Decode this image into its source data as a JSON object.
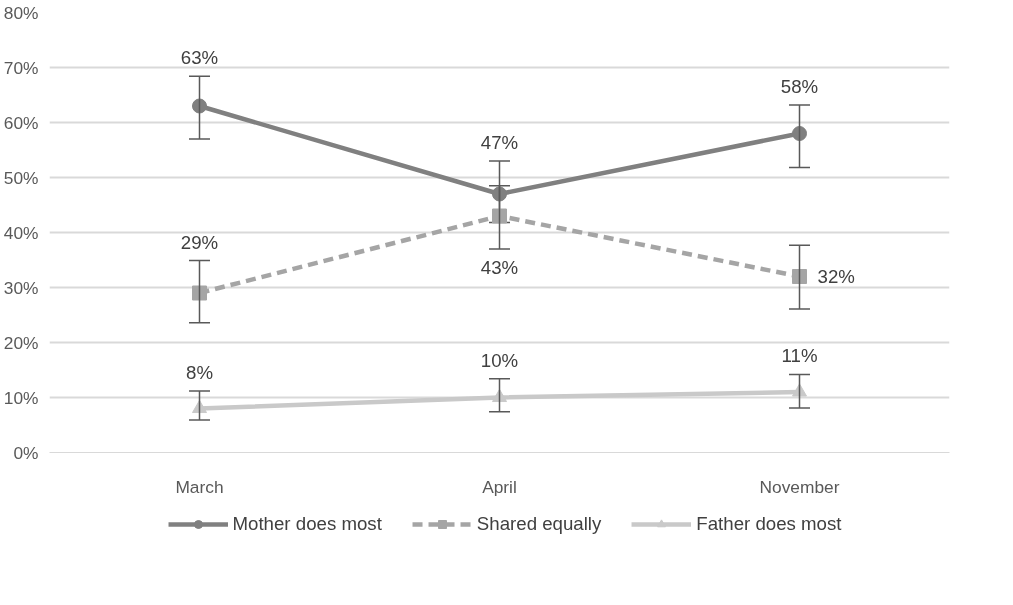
{
  "chart_data": {
    "type": "line",
    "categories": [
      "March",
      "April",
      "November"
    ],
    "series": [
      {
        "name": "Mother does most",
        "color": "#808080",
        "marker": "circle",
        "line_style": "solid",
        "values": [
          63,
          47,
          58
        ],
        "value_labels": [
          "63%",
          "47%",
          "58%"
        ],
        "errors": [
          [
            57.0,
            68.4
          ],
          [
            41.8,
            53.0
          ],
          [
            51.8,
            63.2
          ]
        ]
      },
      {
        "name": "Shared equally",
        "color": "#a5a5a5",
        "marker": "square",
        "line_style": "dashed",
        "values": [
          29,
          43,
          32
        ],
        "value_labels": [
          "29%",
          "43%",
          "32%"
        ],
        "errors": [
          [
            23.6,
            34.9
          ],
          [
            37.0,
            48.5
          ],
          [
            26.1,
            37.7
          ]
        ]
      },
      {
        "name": "Father does most",
        "color": "#c9c9c9",
        "marker": "triangle",
        "line_style": "solid",
        "values": [
          8,
          10,
          11
        ],
        "value_labels": [
          "8%",
          "10%",
          "11%"
        ],
        "errors": [
          [
            5.9,
            11.2
          ],
          [
            7.4,
            13.4
          ],
          [
            8.1,
            14.2
          ]
        ]
      }
    ],
    "ylim": [
      0,
      80
    ],
    "yticks": [
      {
        "value": 0,
        "label": "0%"
      },
      {
        "value": 10,
        "label": "10%"
      },
      {
        "value": 20,
        "label": "20%"
      },
      {
        "value": 30,
        "label": "30%"
      },
      {
        "value": 40,
        "label": "40%"
      },
      {
        "value": 50,
        "label": "50%"
      },
      {
        "value": 60,
        "label": "60%"
      },
      {
        "value": 70,
        "label": "70%"
      },
      {
        "value": 80,
        "label": "80%"
      }
    ],
    "grid": "y",
    "legend": "bottom"
  }
}
